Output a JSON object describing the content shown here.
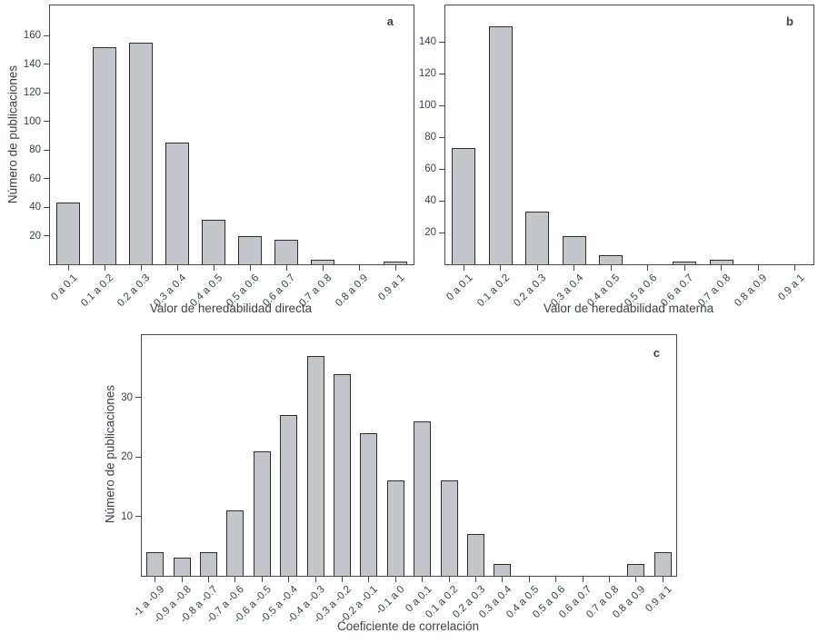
{
  "figure": {
    "background": "#ffffff",
    "bar_fill": "#c3c7cc",
    "bar_border": "#2e2e2e",
    "axis_color": "#4a4a4a",
    "text_color": "#3b4049"
  },
  "chart_data": [
    {
      "id": "a",
      "type": "bar",
      "panel_label": "a",
      "xlabel": "Valor de heredabilidad directa",
      "ylabel": "Número de publicaciones",
      "categories": [
        "0 a 0.1",
        "0.1 a 0.2",
        "0.2 a 0.3",
        "0.3 a 0.4",
        "0.4 a 0.5",
        "0.5 a 0.6",
        "0.6 a 0.7",
        "0.7 a 0.8",
        "0.8 a 0.9",
        "0.9 a 1"
      ],
      "values": [
        43,
        152,
        155,
        85,
        31,
        20,
        17,
        3,
        0,
        2
      ],
      "ylim": [
        0,
        181
      ],
      "yticks": [
        20,
        40,
        60,
        80,
        100,
        120,
        140,
        160
      ],
      "grid": false,
      "legend": "none"
    },
    {
      "id": "b",
      "type": "bar",
      "panel_label": "b",
      "xlabel": "Valor de heredabilidad materna",
      "ylabel": "",
      "categories": [
        "0 a 0.1",
        "0.1 a 0.2",
        "0.2 a 0.3",
        "0.3 a 0.4",
        "0.4 a 0.5",
        "0.5 a 0.6",
        "0.6 a 0.7",
        "0.7 a 0.8",
        "0.8 a 0.9",
        "0.9 a 1"
      ],
      "values": [
        73,
        150,
        33,
        18,
        6,
        0,
        2,
        3,
        0,
        0
      ],
      "ylim": [
        0,
        163
      ],
      "yticks": [
        20,
        40,
        60,
        80,
        100,
        120,
        140
      ],
      "grid": false,
      "legend": "none"
    },
    {
      "id": "c",
      "type": "bar",
      "panel_label": "c",
      "xlabel": "Coeficiente de correlación",
      "ylabel": "Número de publicaciones",
      "categories": [
        "-1 a -0.9",
        "-0.9 a -0.8",
        "-0.8 a -0.7",
        "-0.7 a -0.6",
        "-0.6 a -0.5",
        "-0.5 a -0.4",
        "-0.4 a -0.3",
        "-0.3 a -0.2",
        "-0.2 a -0.1",
        "-0.1 a 0",
        "0 a 0.1",
        "0.1 a 0.2",
        "0.2 a 0.3",
        "0.3 a 0.4",
        "0.4 a 0.5",
        "0.5 a 0.6",
        "0.6 a 0.7",
        "0.7 a 0.8",
        "0.8 a 0.9",
        "0.9 a 1"
      ],
      "values": [
        4,
        3,
        4,
        11,
        21,
        27,
        37,
        34,
        24,
        16,
        26,
        16,
        7,
        2,
        0,
        0,
        0,
        0,
        2,
        4
      ],
      "ylim": [
        0,
        40.5
      ],
      "yticks": [
        10,
        20,
        30
      ],
      "grid": false,
      "legend": "none"
    }
  ]
}
